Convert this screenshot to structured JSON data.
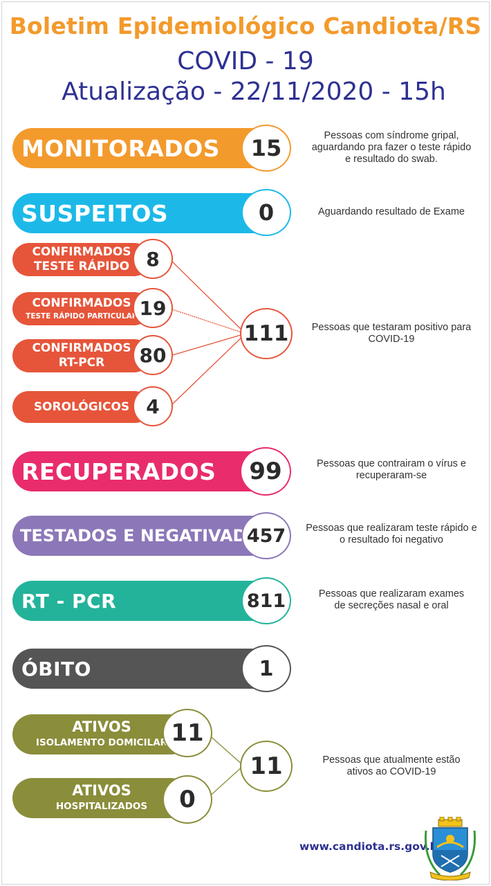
{
  "header": {
    "title": "Boletim Epidemiológico Candiota/RS",
    "subtitle": "COVID - 19",
    "update": "Atualização - 22/11/2020 - 15h"
  },
  "items": {
    "monitorados": {
      "label": "MONITORADOS",
      "value": "15",
      "color": "#f39a2c",
      "desc": [
        "Pessoas com síndrome gripal,",
        "aguardando pra fazer o teste rápido",
        "e resultado do swab."
      ]
    },
    "suspeitos": {
      "label": "SUSPEITOS",
      "value": "0",
      "color": "#1cb9e8",
      "desc": [
        "Aguardando resultado de Exame"
      ]
    },
    "confirmados_rapido": {
      "label_1": "CONFIRMADOS",
      "label_2": "TESTE RÁPIDO",
      "value": "8",
      "color": "#e6553a"
    },
    "confirmados_particular": {
      "label_1": "CONFIRMADOS",
      "label_2": "TESTE RÁPIDO PARTICULAR",
      "value": "19",
      "color": "#e6553a"
    },
    "confirmados_pcr": {
      "label_1": "CONFIRMADOS",
      "label_2": "RT-PCR",
      "value": "80",
      "color": "#e6553a"
    },
    "sorologicos": {
      "label": "SOROLÓGICOS",
      "value": "4",
      "color": "#e6553a"
    },
    "confirmados_total": {
      "value": "111",
      "desc": [
        "Pessoas que testaram positivo para",
        "COVID-19"
      ]
    },
    "recuperados": {
      "label": "RECUPERADOS",
      "value": "99",
      "color": "#e92c6c",
      "desc": [
        "Pessoas que contrairam o vírus e",
        "recuperaram-se"
      ]
    },
    "testados_negativados": {
      "label": "TESTADOS E NEGATIVADOS",
      "value": "457",
      "color": "#8c77b8",
      "desc": [
        "Pessoas que realizaram teste rápido e",
        "o resultado foi negativo"
      ]
    },
    "rt_pcr": {
      "label": "RT - PCR",
      "value": "811",
      "color": "#23b39a",
      "desc": [
        "Pessoas que realizaram exames",
        "de secreções nasal e oral"
      ]
    },
    "obito": {
      "label": "ÓBITO",
      "value": "1",
      "color": "#555555"
    },
    "ativos_isolamento": {
      "label_1": "ATIVOS",
      "label_2": "ISOLAMENTO DOMICILAR",
      "value": "11",
      "color": "#8a8d3a"
    },
    "ativos_hospitalizados": {
      "label_1": "ATIVOS",
      "label_2": "HOSPITALIZADOS",
      "value": "0",
      "color": "#8a8d3a"
    },
    "ativos_total": {
      "value": "11",
      "desc": [
        "Pessoas que atualmente estão",
        "ativos ao COVID-19"
      ]
    }
  },
  "footer": {
    "url": "www.candiota.rs.gov.br",
    "crest_icon": "municipal-coat-of-arms-icon"
  }
}
